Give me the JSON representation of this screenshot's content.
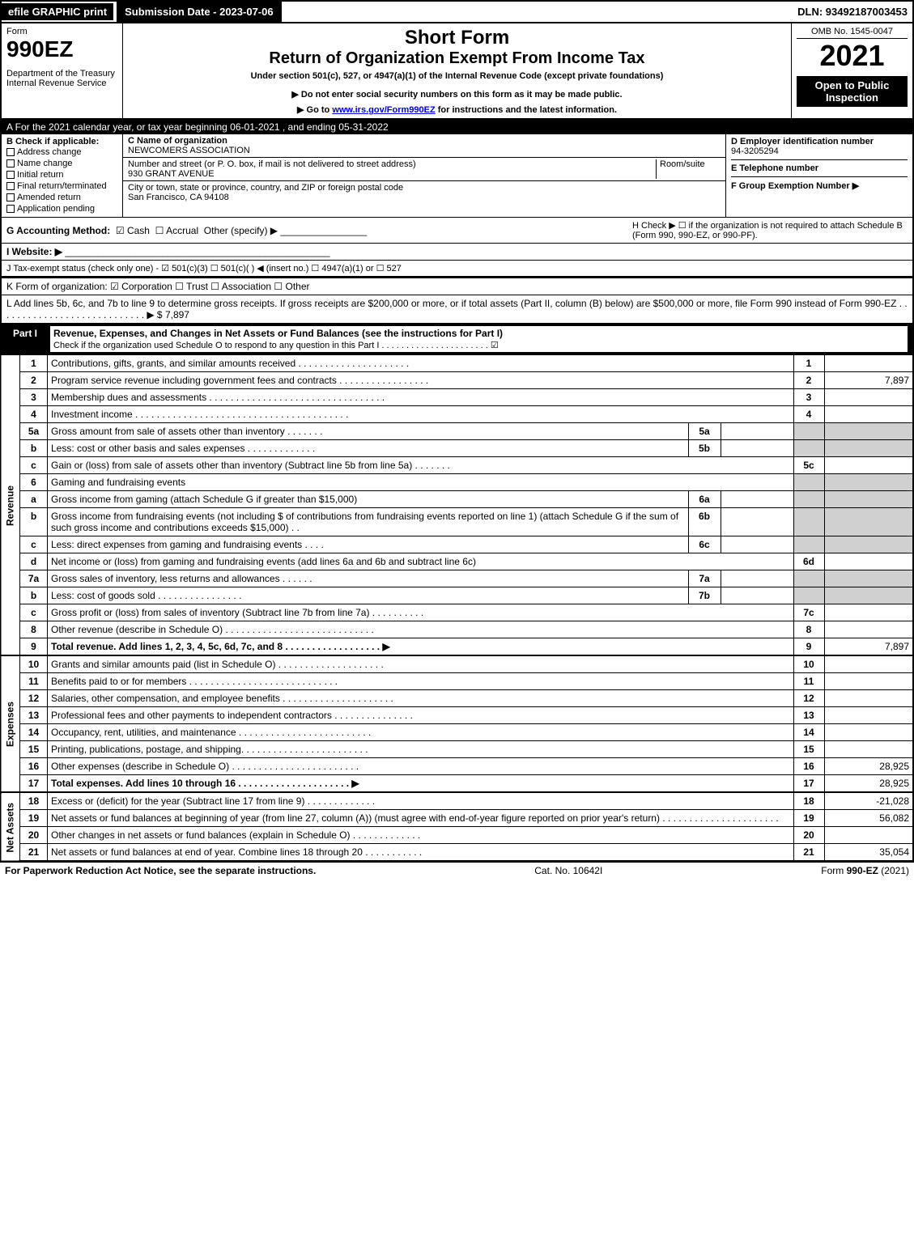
{
  "topbar": {
    "efile": "efile GRAPHIC print",
    "submission": "Submission Date - 2023-07-06",
    "dln": "DLN: 93492187003453"
  },
  "header": {
    "form_word": "Form",
    "form_num": "990EZ",
    "dept": "Department of the Treasury\nInternal Revenue Service",
    "short_form": "Short Form",
    "title": "Return of Organization Exempt From Income Tax",
    "subtitle": "Under section 501(c), 527, or 4947(a)(1) of the Internal Revenue Code (except private foundations)",
    "note1": "▶ Do not enter social security numbers on this form as it may be made public.",
    "note2": "▶ Go to www.irs.gov/Form990EZ for instructions and the latest information.",
    "omb": "OMB No. 1545-0047",
    "year": "2021",
    "open": "Open to Public Inspection"
  },
  "sectionA": "A  For the 2021 calendar year, or tax year beginning 06-01-2021 , and ending 05-31-2022",
  "B": {
    "label": "B  Check if applicable:",
    "items": [
      "Address change",
      "Name change",
      "Initial return",
      "Final return/terminated",
      "Amended return",
      "Application pending"
    ]
  },
  "C": {
    "name_label": "C Name of organization",
    "name": "NEWCOMERS ASSOCIATION",
    "addr_label": "Number and street (or P. O. box, if mail is not delivered to street address)",
    "room_label": "Room/suite",
    "addr": "930 GRANT AVENUE",
    "city_label": "City or town, state or province, country, and ZIP or foreign postal code",
    "city": "San Francisco, CA  94108"
  },
  "D": {
    "label": "D Employer identification number",
    "value": "94-3205294"
  },
  "E": {
    "label": "E Telephone number",
    "value": ""
  },
  "F": {
    "label": "F Group Exemption Number  ▶",
    "value": ""
  },
  "G": {
    "label": "G Accounting Method:",
    "cash": "Cash",
    "accrual": "Accrual",
    "other": "Other (specify) ▶"
  },
  "H": {
    "label": "H  Check ▶  ☐  if the organization is not required to attach Schedule B (Form 990, 990-EZ, or 990-PF)."
  },
  "I": {
    "label": "I Website: ▶"
  },
  "J": {
    "label": "J Tax-exempt status (check only one) - ☑ 501(c)(3)  ☐ 501(c)(  ) ◀ (insert no.)  ☐ 4947(a)(1) or  ☐ 527"
  },
  "K": {
    "label": "K Form of organization:  ☑ Corporation   ☐ Trust   ☐ Association   ☐ Other"
  },
  "L": {
    "label": "L Add lines 5b, 6c, and 7b to line 9 to determine gross receipts. If gross receipts are $200,000 or more, or if total assets (Part II, column (B) below) are $500,000 or more, file Form 990 instead of Form 990-EZ  . . . . . . . . . . . . . . . . . . . . . . . . . . . .  ▶ $ 7,897"
  },
  "partI": {
    "label": "Part I",
    "title": "Revenue, Expenses, and Changes in Net Assets or Fund Balances (see the instructions for Part I)",
    "check": "Check if the organization used Schedule O to respond to any question in this Part I . . . . . . . . . . . . . . . . . . . . . .  ☑"
  },
  "sections": {
    "revenue": "Revenue",
    "expenses": "Expenses",
    "netassets": "Net Assets"
  },
  "rows": [
    {
      "n": "1",
      "d": "Contributions, gifts, grants, and similar amounts received . . . . . . . . . . . . . . . . . . . . .",
      "r": "1",
      "a": ""
    },
    {
      "n": "2",
      "d": "Program service revenue including government fees and contracts . . . . . . . . . . . . . . . . .",
      "r": "2",
      "a": "7,897"
    },
    {
      "n": "3",
      "d": "Membership dues and assessments . . . . . . . . . . . . . . . . . . . . . . . . . . . . . . . . .",
      "r": "3",
      "a": ""
    },
    {
      "n": "4",
      "d": "Investment income . . . . . . . . . . . . . . . . . . . . . . . . . . . . . . . . . . . . . . . .",
      "r": "4",
      "a": ""
    },
    {
      "n": "5a",
      "d": "Gross amount from sale of assets other than inventory . . . . . . .",
      "mb": "5a",
      "mv": "",
      "shade": true
    },
    {
      "n": "b",
      "d": "Less: cost or other basis and sales expenses . . . . . . . . . . . . .",
      "mb": "5b",
      "mv": "",
      "shade": true
    },
    {
      "n": "c",
      "d": "Gain or (loss) from sale of assets other than inventory (Subtract line 5b from line 5a)  . . . . . . .",
      "r": "5c",
      "a": ""
    },
    {
      "n": "6",
      "d": "Gaming and fundraising events",
      "shade": true,
      "noRight": true
    },
    {
      "n": "a",
      "d": "Gross income from gaming (attach Schedule G if greater than $15,000)",
      "mb": "6a",
      "mv": "",
      "shade": true
    },
    {
      "n": "b",
      "d": "Gross income from fundraising events (not including $                    of contributions from fundraising events reported on line 1) (attach Schedule G if the sum of such gross income and contributions exceeds $15,000)    .  .",
      "mb": "6b",
      "mv": "",
      "shade": true
    },
    {
      "n": "c",
      "d": "Less: direct expenses from gaming and fundraising events   . . . .",
      "mb": "6c",
      "mv": "",
      "shade": true
    },
    {
      "n": "d",
      "d": "Net income or (loss) from gaming and fundraising events (add lines 6a and 6b and subtract line 6c)",
      "r": "6d",
      "a": ""
    },
    {
      "n": "7a",
      "d": "Gross sales of inventory, less returns and allowances . . . . . .",
      "mb": "7a",
      "mv": "",
      "shade": true
    },
    {
      "n": "b",
      "d": "Less: cost of goods sold       . . . . . . . . . . . . . . . .",
      "mb": "7b",
      "mv": "",
      "shade": true
    },
    {
      "n": "c",
      "d": "Gross profit or (loss) from sales of inventory (Subtract line 7b from line 7a)  . . . . . . . . . .",
      "r": "7c",
      "a": ""
    },
    {
      "n": "8",
      "d": "Other revenue (describe in Schedule O) . . . . . . . . . . . . . . . . . . . . . . . . . . . .",
      "r": "8",
      "a": ""
    },
    {
      "n": "9",
      "d": "Total revenue. Add lines 1, 2, 3, 4, 5c, 6d, 7c, and 8  . . . . . . . . . . . . . . . . . .  ▶",
      "r": "9",
      "a": "7,897",
      "bold": true
    }
  ],
  "expRows": [
    {
      "n": "10",
      "d": "Grants and similar amounts paid (list in Schedule O) . . . . . . . . . . . . . . . . . . . .",
      "r": "10",
      "a": ""
    },
    {
      "n": "11",
      "d": "Benefits paid to or for members    . . . . . . . . . . . . . . . . . . . . . . . . . . . .",
      "r": "11",
      "a": ""
    },
    {
      "n": "12",
      "d": "Salaries, other compensation, and employee benefits . . . . . . . . . . . . . . . . . . . . .",
      "r": "12",
      "a": ""
    },
    {
      "n": "13",
      "d": "Professional fees and other payments to independent contractors . . . . . . . . . . . . . . .",
      "r": "13",
      "a": ""
    },
    {
      "n": "14",
      "d": "Occupancy, rent, utilities, and maintenance . . . . . . . . . . . . . . . . . . . . . . . . .",
      "r": "14",
      "a": ""
    },
    {
      "n": "15",
      "d": "Printing, publications, postage, and shipping. . . . . . . . . . . . . . . . . . . . . . . .",
      "r": "15",
      "a": ""
    },
    {
      "n": "16",
      "d": "Other expenses (describe in Schedule O)    . . . . . . . . . . . . . . . . . . . . . . . .",
      "r": "16",
      "a": "28,925"
    },
    {
      "n": "17",
      "d": "Total expenses. Add lines 10 through 16     . . . . . . . . . . . . . . . . . . . . .  ▶",
      "r": "17",
      "a": "28,925",
      "bold": true
    }
  ],
  "naRows": [
    {
      "n": "18",
      "d": "Excess or (deficit) for the year (Subtract line 17 from line 9)        . . . . . . . . . . . . .",
      "r": "18",
      "a": "-21,028"
    },
    {
      "n": "19",
      "d": "Net assets or fund balances at beginning of year (from line 27, column (A)) (must agree with end-of-year figure reported on prior year's return) . . . . . . . . . . . . . . . . . . . . . .",
      "r": "19",
      "a": "56,082"
    },
    {
      "n": "20",
      "d": "Other changes in net assets or fund balances (explain in Schedule O) . . . . . . . . . . . . .",
      "r": "20",
      "a": ""
    },
    {
      "n": "21",
      "d": "Net assets or fund balances at end of year. Combine lines 18 through 20 . . . . . . . . . . .",
      "r": "21",
      "a": "35,054"
    }
  ],
  "footer": {
    "left": "For Paperwork Reduction Act Notice, see the separate instructions.",
    "mid": "Cat. No. 10642I",
    "right": "Form 990-EZ (2021)"
  },
  "colors": {
    "black": "#000000",
    "white": "#ffffff",
    "shade": "#d0d0d0",
    "link": "#0000ee"
  }
}
